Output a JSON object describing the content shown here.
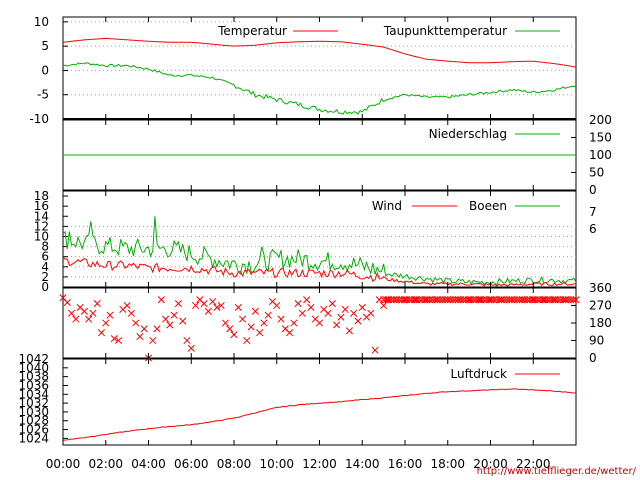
{
  "credit": "http://www.tiefflieger.de/wetter/",
  "chart_data": [
    {
      "type": "line",
      "panel": "temperature",
      "x_ticks": [
        "00:00",
        "02:00",
        "04:00",
        "06:00",
        "08:00",
        "10:00",
        "12:00",
        "14:00",
        "16:00",
        "18:00",
        "20:00",
        "22:00"
      ],
      "y_ticks_left": [
        "10",
        "5",
        "0",
        "-5",
        "-10"
      ],
      "ylim": [
        -10,
        11
      ],
      "x_hours": [
        0,
        1,
        2,
        3,
        4,
        5,
        6,
        7,
        8,
        9,
        10,
        11,
        12,
        13,
        14,
        15,
        16,
        17,
        18,
        19,
        20,
        21,
        22,
        23,
        24
      ],
      "series": [
        {
          "name": "Temperatur",
          "color": "#ff0000",
          "values": [
            5.8,
            6.3,
            6.6,
            6.3,
            6.0,
            5.8,
            5.8,
            5.4,
            5.0,
            5.2,
            5.7,
            5.9,
            6.0,
            5.9,
            5.4,
            4.8,
            3.4,
            2.3,
            1.9,
            1.6,
            1.6,
            1.8,
            1.9,
            1.4,
            0.7
          ]
        },
        {
          "name": "Taupunkttemperatur",
          "color": "#00b000",
          "values": [
            1.0,
            1.5,
            1.0,
            1.0,
            0.3,
            -1.0,
            -1.0,
            -1.5,
            -3.0,
            -5.0,
            -6.0,
            -7.0,
            -8.0,
            -8.5,
            -8.5,
            -6.0,
            -5.0,
            -5.5,
            -5.5,
            -5.0,
            -4.5,
            -4.0,
            -4.5,
            -4.0,
            -3.0
          ]
        }
      ]
    },
    {
      "type": "line",
      "panel": "precipitation",
      "y_ticks_right": [
        "200",
        "150",
        "100",
        "50",
        "0"
      ],
      "ylim": [
        0,
        200
      ],
      "series": [
        {
          "name": "Niederschlag",
          "color": "#00b000",
          "values": [
            100,
            100,
            100,
            100,
            100,
            100,
            100,
            100,
            100,
            100,
            100,
            100,
            100,
            100,
            100,
            100,
            100,
            100,
            100,
            100,
            100,
            100,
            100,
            100,
            100
          ]
        }
      ]
    },
    {
      "type": "line",
      "panel": "wind",
      "y_ticks_left": [
        "18",
        "16",
        "14",
        "12",
        "10",
        "8",
        "6",
        "4",
        "2",
        "0"
      ],
      "y_ticks_right": [
        "7",
        "6"
      ],
      "ylim": [
        0,
        19
      ],
      "series": [
        {
          "name": "Wind",
          "color": "#ff0000",
          "values": [
            5,
            4.5,
            4,
            4,
            3.5,
            3.5,
            3.5,
            3,
            2.5,
            2.5,
            2.5,
            2.5,
            2.5,
            2.5,
            2,
            1.5,
            1,
            0.5,
            0.5,
            0.5,
            0.3,
            0.3,
            0.5,
            0.5,
            0.5
          ]
        },
        {
          "name": "Boeen",
          "color": "#00b000",
          "values": [
            9,
            8,
            7.5,
            7,
            7,
            7,
            6,
            5,
            4,
            4,
            5,
            5,
            4.5,
            4.5,
            3.5,
            2.5,
            2,
            1.5,
            1,
            0.8,
            0.8,
            1,
            1.2,
            1.2,
            1
          ]
        }
      ],
      "peaks_boeen": [
        [
          0.3,
          11
        ],
        [
          1.3,
          13
        ],
        [
          4.35,
          14
        ],
        [
          9.3,
          8
        ]
      ]
    },
    {
      "type": "scatter",
      "panel": "wind_direction",
      "y_ticks_right": [
        "360",
        "270",
        "180",
        "90",
        "0"
      ],
      "ylim": [
        0,
        360
      ],
      "series": [
        {
          "name": "",
          "color": "#ff0000",
          "points": [
            [
              0.0,
              310
            ],
            [
              0.2,
              285
            ],
            [
              0.4,
              230
            ],
            [
              0.6,
              200
            ],
            [
              0.8,
              260
            ],
            [
              1.0,
              240
            ],
            [
              1.2,
              200
            ],
            [
              1.4,
              230
            ],
            [
              1.6,
              280
            ],
            [
              1.8,
              130
            ],
            [
              2.0,
              180
            ],
            [
              2.2,
              220
            ],
            [
              2.4,
              100
            ],
            [
              2.6,
              90
            ],
            [
              2.8,
              250
            ],
            [
              3.0,
              270
            ],
            [
              3.2,
              230
            ],
            [
              3.4,
              180
            ],
            [
              3.6,
              110
            ],
            [
              3.8,
              150
            ],
            [
              4.0,
              0
            ],
            [
              4.2,
              90
            ],
            [
              4.4,
              150
            ],
            [
              4.6,
              300
            ],
            [
              4.8,
              200
            ],
            [
              5.0,
              170
            ],
            [
              5.2,
              220
            ],
            [
              5.4,
              280
            ],
            [
              5.6,
              190
            ],
            [
              5.8,
              90
            ],
            [
              6.0,
              50
            ],
            [
              6.2,
              270
            ],
            [
              6.4,
              300
            ],
            [
              6.6,
              280
            ],
            [
              6.8,
              240
            ],
            [
              7.0,
              290
            ],
            [
              7.2,
              260
            ],
            [
              7.4,
              270
            ],
            [
              7.6,
              180
            ],
            [
              7.8,
              150
            ],
            [
              8.0,
              120
            ],
            [
              8.2,
              260
            ],
            [
              8.4,
              200
            ],
            [
              8.6,
              90
            ],
            [
              8.8,
              160
            ],
            [
              9.0,
              240
            ],
            [
              9.2,
              130
            ],
            [
              9.4,
              180
            ],
            [
              9.6,
              220
            ],
            [
              9.8,
              290
            ],
            [
              10.0,
              270
            ],
            [
              10.2,
              200
            ],
            [
              10.4,
              150
            ],
            [
              10.6,
              130
            ],
            [
              10.8,
              180
            ],
            [
              11.0,
              280
            ],
            [
              11.2,
              230
            ],
            [
              11.4,
              300
            ],
            [
              11.6,
              260
            ],
            [
              11.8,
              200
            ],
            [
              12.0,
              180
            ],
            [
              12.2,
              250
            ],
            [
              12.4,
              230
            ],
            [
              12.6,
              280
            ],
            [
              12.8,
              170
            ],
            [
              13.0,
              210
            ],
            [
              13.2,
              250
            ],
            [
              13.4,
              140
            ],
            [
              13.6,
              230
            ],
            [
              13.8,
              190
            ],
            [
              14.0,
              260
            ],
            [
              14.2,
              210
            ],
            [
              14.4,
              230
            ],
            [
              14.6,
              40
            ],
            [
              14.8,
              300
            ],
            [
              15.0,
              270
            ],
            [
              15.2,
              300
            ],
            [
              15.6,
              300
            ],
            [
              16.0,
              300
            ],
            [
              16.5,
              300
            ],
            [
              17.0,
              300
            ],
            [
              17.5,
              300
            ],
            [
              18.0,
              300
            ],
            [
              18.5,
              300
            ],
            [
              19.0,
              300
            ],
            [
              19.5,
              300
            ],
            [
              20.0,
              300
            ],
            [
              20.5,
              300
            ],
            [
              21.0,
              300
            ],
            [
              21.5,
              300
            ],
            [
              22.0,
              300
            ],
            [
              22.5,
              300
            ],
            [
              23.0,
              300
            ],
            [
              23.5,
              300
            ],
            [
              24.0,
              300
            ]
          ]
        }
      ]
    },
    {
      "type": "line",
      "panel": "pressure",
      "y_ticks_left": [
        "1042",
        "1040",
        "1038",
        "1036",
        "1034",
        "1032",
        "1030",
        "1028",
        "1026",
        "1024"
      ],
      "ylim": [
        1022.5,
        1042
      ],
      "series": [
        {
          "name": "Luftdruck",
          "color": "#ff0000",
          "values": [
            1023.6,
            1024.2,
            1024.9,
            1025.6,
            1026.2,
            1026.7,
            1027.1,
            1027.8,
            1028.6,
            1029.8,
            1031.0,
            1031.6,
            1032.0,
            1032.3,
            1032.8,
            1033.2,
            1033.7,
            1034.2,
            1034.6,
            1034.8,
            1035.0,
            1035.2,
            1035.0,
            1034.7,
            1034.3
          ]
        }
      ]
    }
  ]
}
